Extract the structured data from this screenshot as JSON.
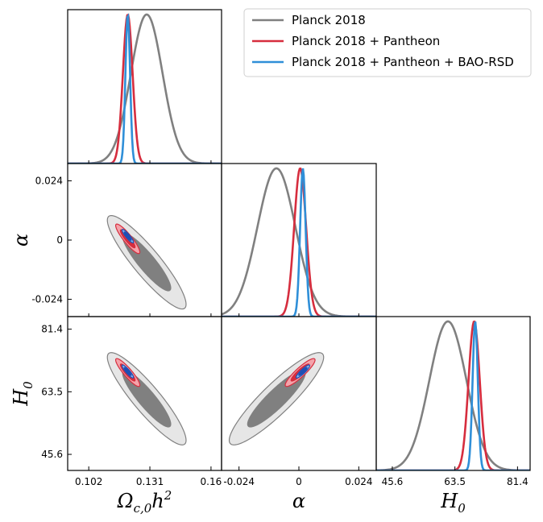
{
  "chart_data": {
    "type": "triangle-plot",
    "parameters": [
      {
        "key": "omch2",
        "label": "Ωc,0h2",
        "label_base": "Ω",
        "label_sub": "c,0",
        "label_tail": "h",
        "label_sup": "2",
        "range": [
          0.092,
          0.165
        ],
        "ticks": [
          0.102,
          0.131,
          0.16
        ],
        "tick_labels": [
          "0.102",
          "0.131",
          "0.16"
        ]
      },
      {
        "key": "alpha",
        "label": "α",
        "label_base": "α",
        "range": [
          -0.031,
          0.031
        ],
        "ticks": [
          -0.024,
          0,
          0.024
        ],
        "tick_labels": [
          "-0.024",
          "0",
          "0.024"
        ]
      },
      {
        "key": "H0",
        "label": "H0",
        "label_base": "H",
        "label_sub": "0",
        "range": [
          41,
          85
        ],
        "ticks": [
          45.6,
          63.5,
          81.4
        ],
        "tick_labels": [
          "45.6",
          "63.5",
          "81.4"
        ]
      }
    ],
    "legend": {
      "position": "top-right",
      "entries": [
        "Planck 2018",
        "Planck 2018 + Pantheon",
        "Planck 2018 + Pantheon + BAO-RSD"
      ]
    },
    "series": [
      {
        "name": "Planck 2018",
        "line_color": "#808080",
        "fill_inner": "#808080",
        "fill_outer": "#e6e6e6",
        "edge": "#808080",
        "mean": {
          "omch2": 0.1295,
          "alpha": -0.009,
          "H0": 61.5
        },
        "sigma": {
          "omch2": 0.0075,
          "alpha": 0.0076,
          "H0": 5.3
        },
        "corr": {
          "omch2_alpha": -0.9,
          "omch2_H0": -0.9,
          "alpha_H0": 0.9
        }
      },
      {
        "name": "Planck 2018 + Pantheon",
        "line_color": "#d62d3e",
        "fill_inner": "#d62d3e",
        "fill_outer": "#f4a3aa",
        "edge": "#d62d3e",
        "mean": {
          "omch2": 0.1205,
          "alpha": 0.0005,
          "H0": 69.0
        },
        "sigma": {
          "omch2": 0.0023,
          "alpha": 0.0024,
          "H0": 1.6
        },
        "corr": {
          "omch2_alpha": -0.9,
          "omch2_H0": -0.9,
          "alpha_H0": 0.9
        }
      },
      {
        "name": "Planck 2018 + Pantheon + BAO-RSD",
        "line_color": "#2f8fd8",
        "fill_inner": "#1f4fb4",
        "fill_outer": "#8fb8e8",
        "edge": "#1f4fb4",
        "mean": {
          "omch2": 0.1205,
          "alpha": 0.0016,
          "H0": 69.3
        },
        "sigma": {
          "omch2": 0.0011,
          "alpha": 0.0011,
          "H0": 0.75
        },
        "corr": {
          "omch2_alpha": -0.9,
          "omch2_H0": -0.9,
          "alpha_H0": 0.9
        }
      }
    ]
  }
}
